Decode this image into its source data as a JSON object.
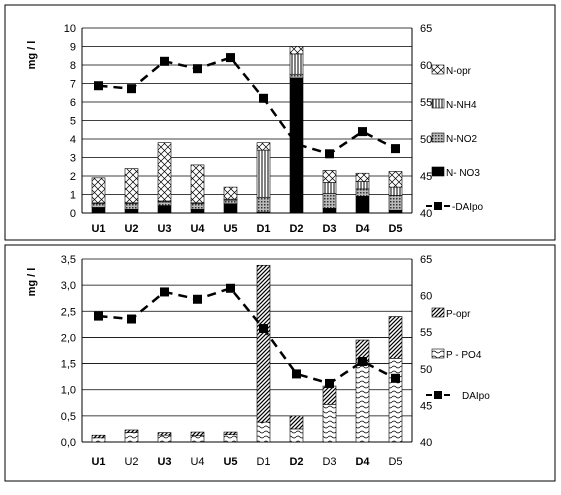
{
  "chart_data": [
    {
      "type": "bar",
      "stacked": true,
      "ylabel": "mg / l",
      "ylim": [
        0,
        10
      ],
      "yticks": [
        "0",
        "1",
        "2",
        "3",
        "4",
        "5",
        "6",
        "7",
        "8",
        "9",
        "10"
      ],
      "y2lim": [
        40,
        65
      ],
      "y2ticks": [
        "40",
        "45",
        "50",
        "55",
        "60",
        "65"
      ],
      "grid": true,
      "legend_position": "right",
      "categories": [
        "U1",
        "U2",
        "U3",
        "U4",
        "U5",
        "D1",
        "D2",
        "D3",
        "D4",
        "D5"
      ],
      "bold_categories": [
        "U1",
        "U2",
        "U3",
        "U4",
        "U5",
        "D1",
        "D2",
        "D3",
        "D4",
        "D5"
      ],
      "series": [
        {
          "name": "N- NO3",
          "values": [
            0.3,
            0.2,
            0.4,
            0.2,
            0.5,
            0.05,
            7.3,
            0.25,
            0.9,
            0.15
          ],
          "fill": "black"
        },
        {
          "name": "N-NO2",
          "values": [
            0.2,
            0.3,
            0.2,
            0.3,
            0.2,
            0.8,
            0.2,
            0.8,
            0.4,
            0.8
          ],
          "fill": "dots"
        },
        {
          "name": "N-NH4",
          "values": [
            0.05,
            0.05,
            0.05,
            0.05,
            0.05,
            2.55,
            1.1,
            0.6,
            0.4,
            0.45
          ],
          "fill": "vlines"
        },
        {
          "name": "N-opr",
          "values": [
            1.35,
            1.85,
            3.15,
            2.05,
            0.65,
            0.4,
            0.4,
            0.65,
            0.45,
            0.85
          ],
          "fill": "xhatch"
        }
      ],
      "line": {
        "name": "DAIpo",
        "axis": "right",
        "values": [
          57.2,
          56.8,
          60.5,
          59.5,
          61.0,
          55.5,
          49.3,
          48.0,
          51.0,
          48.7
        ]
      },
      "legend": [
        "N-opr",
        "N-NH4",
        "N-NO2",
        "N- NO3",
        "DAIpo"
      ]
    },
    {
      "type": "bar",
      "stacked": true,
      "ylabel": "mg / l",
      "ylim": [
        0,
        3.5
      ],
      "yticks": [
        "0,0",
        "0,5",
        "1,0",
        "1,5",
        "2,0",
        "2,5",
        "3,0",
        "3,5"
      ],
      "y2lim": [
        40,
        65
      ],
      "y2ticks": [
        "40",
        "45",
        "50",
        "55",
        "60",
        "65"
      ],
      "grid": true,
      "legend_position": "right",
      "categories": [
        "U1",
        "U2",
        "U3",
        "U4",
        "U5",
        "D1",
        "D2",
        "D3",
        "D4",
        "D5"
      ],
      "bold_categories": [
        "U1",
        "U3",
        "U5",
        "D2",
        "D4"
      ],
      "series": [
        {
          "name": "P - PO4",
          "values": [
            0.08,
            0.18,
            0.13,
            0.12,
            0.14,
            0.38,
            0.25,
            0.72,
            1.55,
            1.6
          ],
          "fill": "wave"
        },
        {
          "name": "P-opr",
          "values": [
            0.05,
            0.05,
            0.05,
            0.07,
            0.05,
            3.0,
            0.25,
            0.35,
            0.4,
            0.8
          ],
          "fill": "diag"
        }
      ],
      "line": {
        "name": "DAIpo",
        "axis": "right",
        "values": [
          57.2,
          56.8,
          60.5,
          59.5,
          61.0,
          55.5,
          49.3,
          48.0,
          51.0,
          48.7
        ]
      },
      "legend": [
        "P-opr",
        "P - PO4",
        "DAIpo"
      ]
    }
  ]
}
